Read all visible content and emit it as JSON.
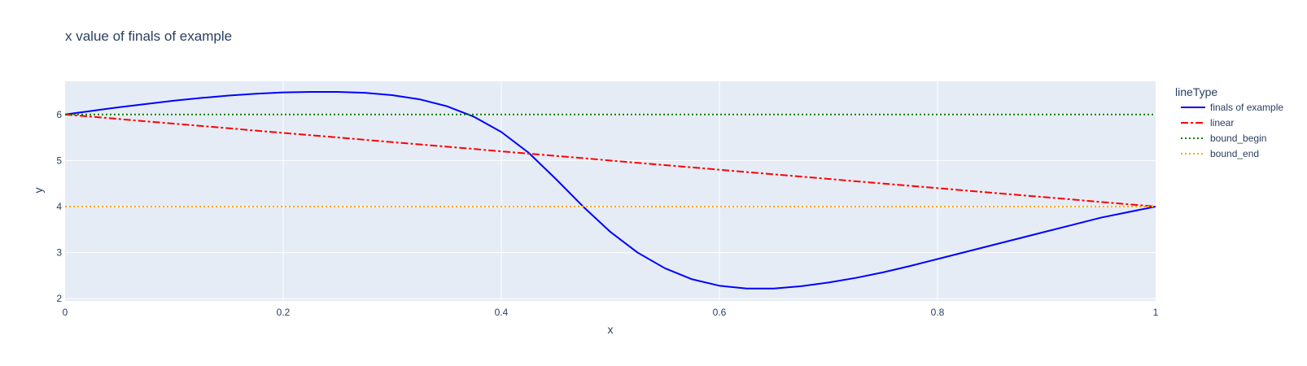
{
  "chart_data": {
    "type": "line",
    "title": "x value of finals of example",
    "xlabel": "x",
    "ylabel": "y",
    "xlim": [
      0,
      1
    ],
    "ylim": [
      1.95,
      6.72
    ],
    "xticks": [
      0,
      0.2,
      0.4,
      0.6,
      0.8,
      1
    ],
    "xtick_labels": [
      "0",
      "0.2",
      "0.4",
      "0.6",
      "0.8",
      "1"
    ],
    "yticks": [
      2,
      3,
      4,
      5,
      6
    ],
    "ytick_labels": [
      "2",
      "3",
      "4",
      "5",
      "6"
    ],
    "grid": true,
    "legend_title": "lineType",
    "legend_position": "right",
    "colors": {
      "plot_bg": "#E5ECF6",
      "grid": "#ffffff",
      "text": "#2a3f5f"
    },
    "series": [
      {
        "name": "finals of example",
        "color": "#0000ff",
        "dash": "solid",
        "x": [
          0,
          0.025,
          0.05,
          0.075,
          0.1,
          0.125,
          0.15,
          0.175,
          0.2,
          0.225,
          0.25,
          0.275,
          0.3,
          0.325,
          0.35,
          0.375,
          0.4,
          0.425,
          0.45,
          0.475,
          0.5,
          0.525,
          0.55,
          0.575,
          0.6,
          0.625,
          0.65,
          0.675,
          0.7,
          0.725,
          0.75,
          0.775,
          0.8,
          0.825,
          0.85,
          0.875,
          0.9,
          0.925,
          0.95,
          0.975,
          1
        ],
        "y": [
          6.0,
          6.08,
          6.16,
          6.23,
          6.3,
          6.36,
          6.41,
          6.45,
          6.48,
          6.49,
          6.49,
          6.47,
          6.42,
          6.33,
          6.18,
          5.95,
          5.62,
          5.17,
          4.6,
          4.0,
          3.45,
          3.0,
          2.66,
          2.42,
          2.28,
          2.22,
          2.22,
          2.27,
          2.35,
          2.45,
          2.57,
          2.71,
          2.86,
          3.01,
          3.16,
          3.31,
          3.46,
          3.61,
          3.76,
          3.88,
          4.0
        ]
      },
      {
        "name": "linear",
        "color": "#ff0000",
        "dash": "dashdot",
        "x": [
          0,
          1
        ],
        "y": [
          6,
          4
        ]
      },
      {
        "name": "bound_begin",
        "color": "#008000",
        "dash": "dot",
        "x": [
          0,
          1
        ],
        "y": [
          6,
          6
        ]
      },
      {
        "name": "bound_end",
        "color": "#ffa500",
        "dash": "dot",
        "x": [
          0,
          1
        ],
        "y": [
          4,
          4
        ]
      }
    ]
  }
}
